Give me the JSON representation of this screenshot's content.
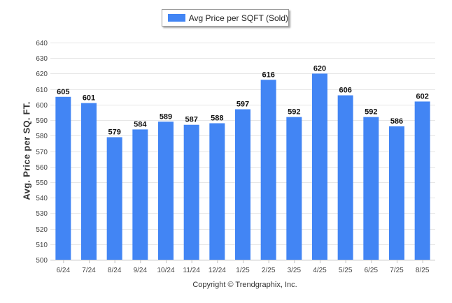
{
  "chart_data": {
    "type": "bar",
    "title": "",
    "xlabel": "",
    "ylabel": "Avg. Price per SQ. FT.",
    "ylim": [
      500,
      640
    ],
    "yticks": [
      500,
      510,
      520,
      530,
      540,
      550,
      560,
      570,
      580,
      590,
      600,
      610,
      620,
      630,
      640
    ],
    "grid": true,
    "legend_position": "top-center",
    "categories": [
      "6/24",
      "7/24",
      "8/24",
      "9/24",
      "10/24",
      "11/24",
      "12/24",
      "1/25",
      "2/25",
      "3/25",
      "4/25",
      "5/25",
      "6/25",
      "7/25",
      "8/25"
    ],
    "series": [
      {
        "name": "Avg Price per SQFT (Sold)",
        "color": "#4285f4",
        "values": [
          605,
          601,
          579,
          584,
          589,
          587,
          588,
          597,
          616,
          592,
          620,
          606,
          592,
          586,
          602
        ]
      }
    ]
  },
  "footer": {
    "copyright": "Copyright © Trendgraphix, Inc."
  }
}
